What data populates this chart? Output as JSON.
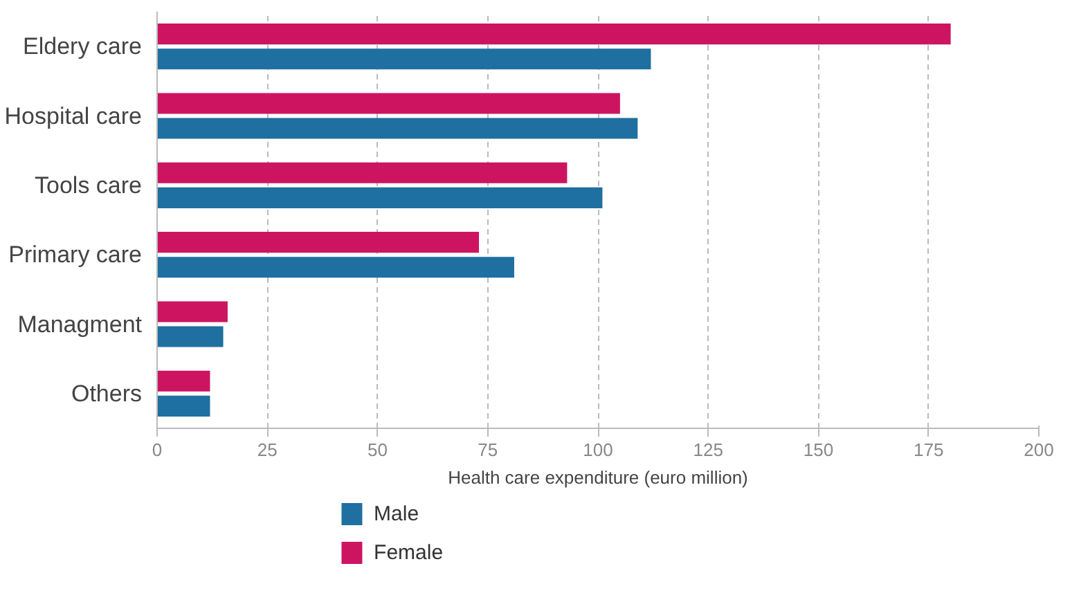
{
  "chart_data": {
    "type": "bar",
    "orientation": "horizontal",
    "categories": [
      "Eldery care",
      "Hospital care",
      "Tools care",
      "Primary care",
      "Managment",
      "Others"
    ],
    "series": [
      {
        "name": "Male",
        "color": "#1f6fa0",
        "values": [
          112,
          109,
          101,
          81,
          15,
          12
        ]
      },
      {
        "name": "Female",
        "color": "#cc1461",
        "values": [
          180,
          105,
          93,
          73,
          16,
          12
        ]
      }
    ],
    "xlabel": "Health care expenditure (euro million)",
    "xlim": [
      0,
      200
    ],
    "xticks": [
      0,
      25,
      50,
      75,
      100,
      125,
      150,
      175,
      200
    ],
    "grid": "x",
    "legend": "bottom left"
  }
}
